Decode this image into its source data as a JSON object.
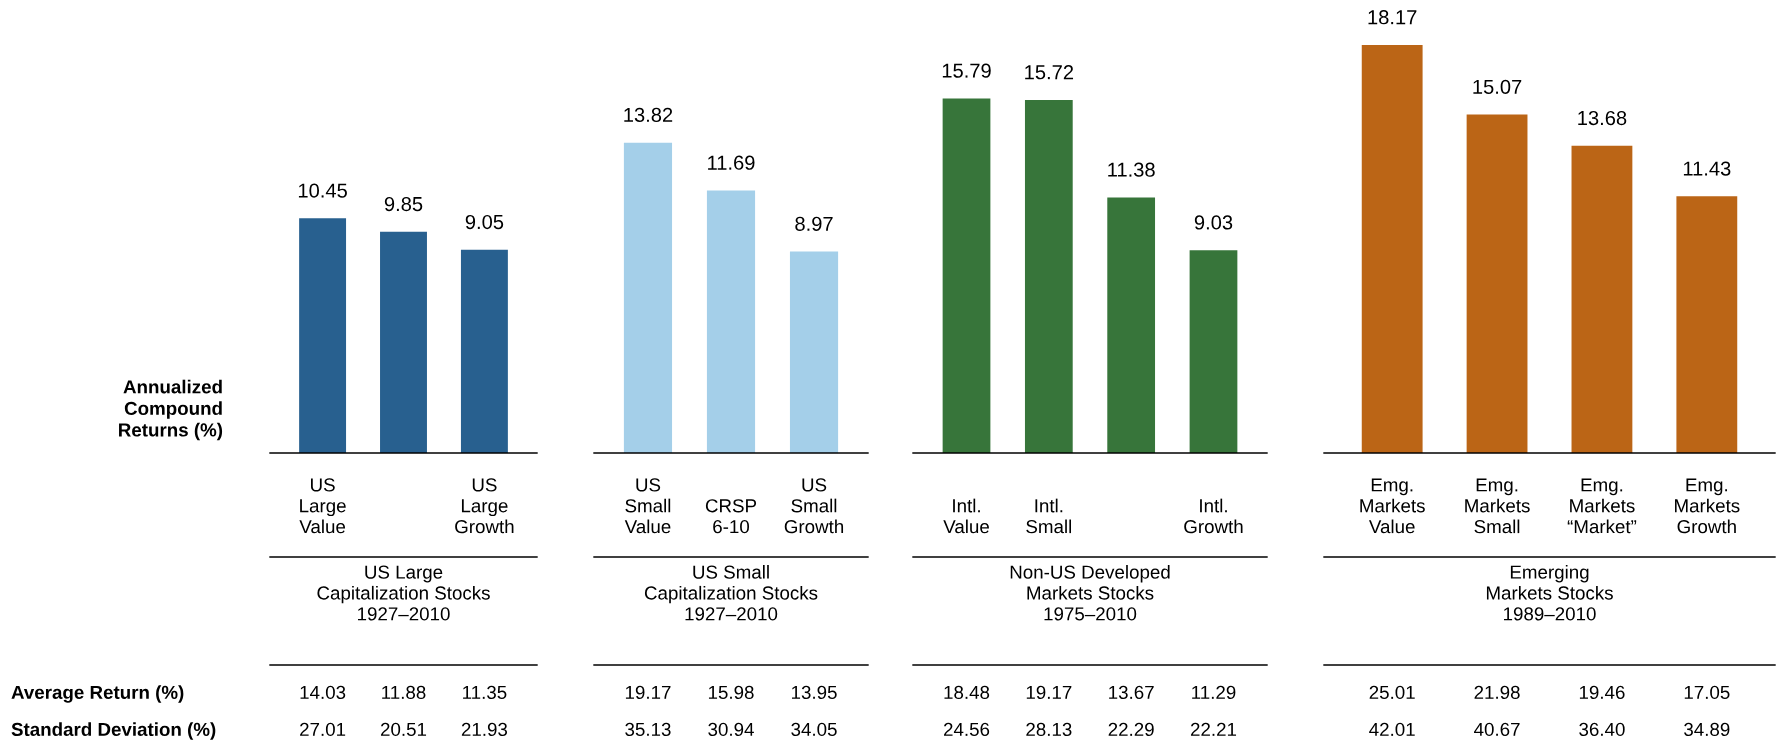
{
  "chart_data": [
    {
      "type": "bar",
      "categories": [
        "US\nLarge\nValue",
        null,
        "US\nLarge\nGrowth"
      ],
      "values": [
        10.45,
        9.85,
        9.05
      ],
      "color": "#28608f",
      "data_labels": true,
      "xlabel": "US Large\nCapitalization Stocks\n1927–2010",
      "ylabel": "Annualized\nCompound\nReturns (%)",
      "annotations": [
        "14.03",
        "11.88",
        "11.35",
        "27.01",
        "20.51",
        "21.93",
        "Average Return (%)",
        "Standard Deviation (%)"
      ]
    },
    {
      "type": "bar",
      "categories": [
        "US\nSmall\nValue",
        "CRSP\n6-10",
        "US\nSmall\nGrowth"
      ],
      "values": [
        13.82,
        11.69,
        8.97
      ],
      "color": "#a4cfe9",
      "data_labels": true,
      "xlabel": "US Small\nCapitalization Stocks\n1927–2010",
      "annotations": [
        "19.17",
        "15.98",
        "13.95",
        "35.13",
        "30.94",
        "34.05"
      ]
    },
    {
      "type": "bar",
      "categories": [
        "Intl.\nValue",
        "Intl.\nSmall",
        null,
        "Intl.\nGrowth"
      ],
      "values": [
        15.79,
        15.72,
        11.38,
        9.03
      ],
      "color": "#37753a",
      "data_labels": true,
      "xlabel": "Non-US Developed\nMarkets Stocks\n1975–2010",
      "annotations": [
        "18.48",
        "19.17",
        "13.67",
        "11.29",
        "24.56",
        "28.13",
        "22.29",
        "22.21"
      ]
    },
    {
      "type": "bar",
      "categories": [
        "Emg.\nMarkets\nValue",
        "Emg.\nMarkets\nSmall",
        "Emg.\nMarkets\n“Market”",
        "Emg.\nMarkets\nGrowth"
      ],
      "values": [
        18.17,
        15.07,
        13.68,
        11.43
      ],
      "color": "#bb6516",
      "data_labels": true,
      "xlabel": "Emerging\nMarkets Stocks\n1989–2010",
      "annotations": [
        "25.01",
        "21.98",
        "19.46",
        "17.05",
        "42.01",
        "40.67",
        "36.40",
        "34.89"
      ]
    }
  ]
}
